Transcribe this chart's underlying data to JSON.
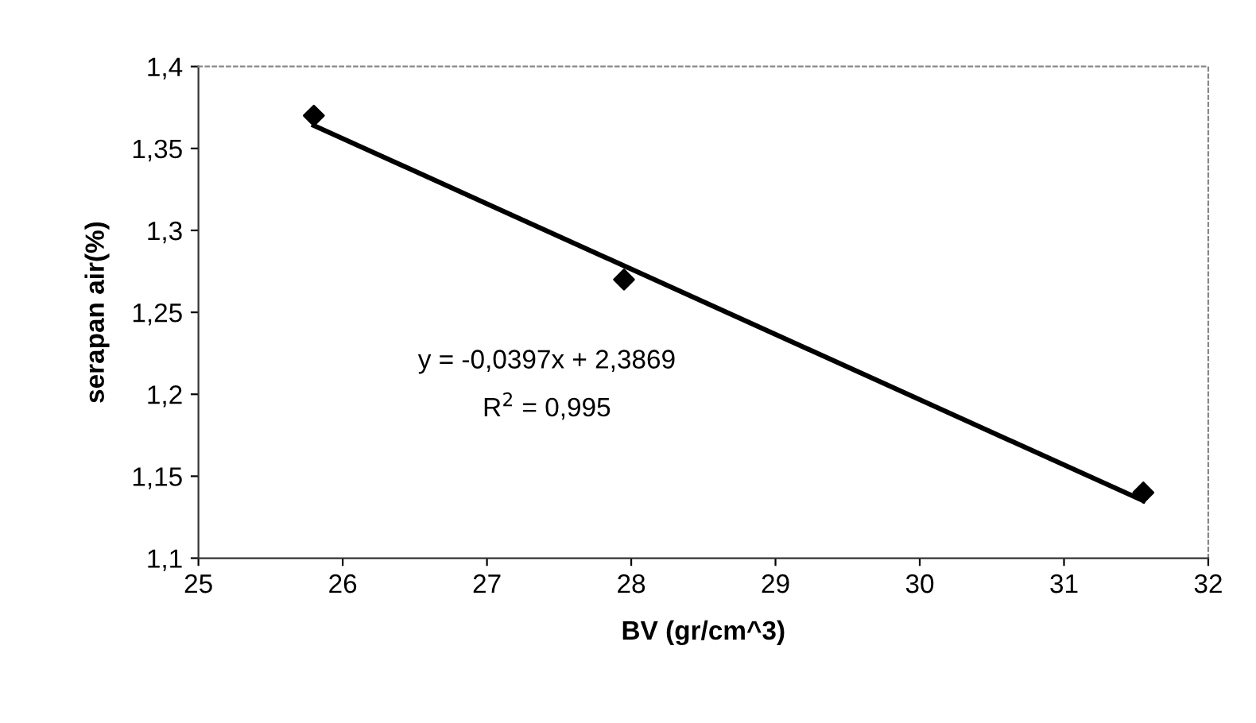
{
  "chart_data": {
    "type": "scatter",
    "xlabel": "BV (gr/cm^3)",
    "ylabel": "serapan air(%)",
    "series": [
      {
        "color": "#000000",
        "marker": "diamond",
        "x": [
          25.8,
          27.95,
          31.55
        ],
        "values": [
          1.37,
          1.27,
          1.14
        ]
      },
      {
        "type": "line",
        "color": "#000000",
        "marker": "none",
        "line_style": "solid",
        "x": [
          25.8,
          31.55
        ],
        "values": [
          1.364,
          1.135
        ]
      }
    ],
    "xlim": [
      25,
      32
    ],
    "xticks": [
      25,
      26,
      27,
      28,
      29,
      30,
      31,
      32
    ],
    "ylim": [
      1.1,
      1.4
    ],
    "yticks": [
      {
        "value": 1.1,
        "label": "1,1"
      },
      {
        "value": 1.15,
        "label": "1,15"
      },
      {
        "value": 1.2,
        "label": "1,2"
      },
      {
        "value": 1.25,
        "label": "1,25"
      },
      {
        "value": 1.3,
        "label": "1,3"
      },
      {
        "value": 1.35,
        "label": "1,35"
      },
      {
        "value": 1.4,
        "label": "1,4"
      }
    ],
    "annotations": [
      "y = -0,0397x + 2,3869",
      "R$^{2}$ = 0,995"
    ],
    "grid": false,
    "legend": false
  }
}
